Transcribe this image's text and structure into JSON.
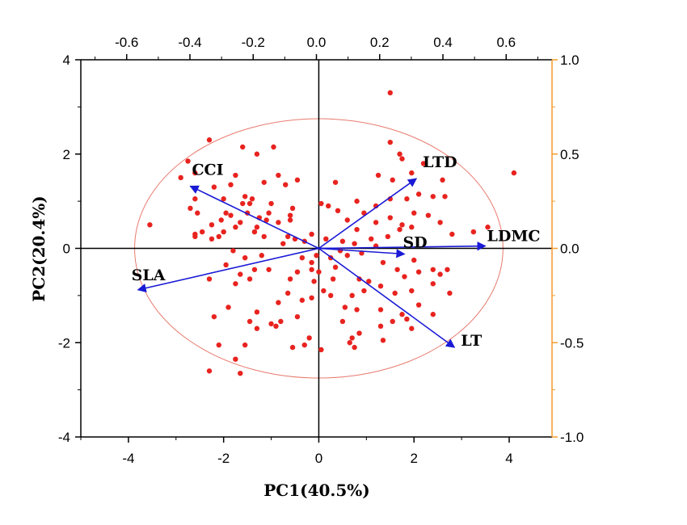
{
  "chart_data": {
    "type": "scatter",
    "subtype": "pca-biplot",
    "title": "",
    "xlabel": "PC1(40.5%)",
    "ylabel": "PC2(20.4%)",
    "xlim": [
      -5,
      4.9
    ],
    "ylim": [
      -4,
      4
    ],
    "x_ticks": [
      "-4",
      "-2",
      "0",
      "2",
      "4"
    ],
    "y_ticks": [
      "-4",
      "-2",
      "0",
      "2",
      "4"
    ],
    "top_axis": {
      "lim": [
        -0.745,
        0.745
      ],
      "ticks": [
        "-0.6",
        "-0.4",
        "-0.2",
        "0.0",
        "0.2",
        "0.4",
        "0.6"
      ],
      "color": "#000000"
    },
    "right_axis": {
      "lim": [
        -1.0,
        1.0
      ],
      "ticks": [
        "-1.0",
        "-0.5",
        "0.0",
        "0.5",
        "1.0"
      ],
      "color": "#f39c2c"
    },
    "grid": false,
    "colors": {
      "points": "#e8231f",
      "vectors": "#1919d6",
      "ellipse": "#e87a6e",
      "frame": "#000000",
      "right_axis": "#f39c2c"
    },
    "ellipse": {
      "center": [
        0,
        0
      ],
      "rx": 3.87,
      "ry": 2.75
    },
    "loadings": [
      {
        "name": "LTD",
        "x": 2.05,
        "y": 1.48
      },
      {
        "name": "CCI",
        "x": -2.7,
        "y": 1.32
      },
      {
        "name": "SLA",
        "x": -3.8,
        "y": -0.88
      },
      {
        "name": "LDMC",
        "x": 3.5,
        "y": 0.05
      },
      {
        "name": "SD",
        "x": 1.8,
        "y": -0.12
      },
      {
        "name": "LT",
        "x": 2.85,
        "y": -2.1
      }
    ],
    "points": [
      [
        1.5,
        3.3
      ],
      [
        1.5,
        2.25
      ],
      [
        1.7,
        2.0
      ],
      [
        1.75,
        1.9
      ],
      [
        1.25,
        1.55
      ],
      [
        1.55,
        1.45
      ],
      [
        2.2,
        1.8
      ],
      [
        1.95,
        1.6
      ],
      [
        2.6,
        1.45
      ],
      [
        2.65,
        1.1
      ],
      [
        1.5,
        1.05
      ],
      [
        2.1,
        1.15
      ],
      [
        1.85,
        1.05
      ],
      [
        2.4,
        1.1
      ],
      [
        2.0,
        0.75
      ],
      [
        1.5,
        0.65
      ],
      [
        1.75,
        0.5
      ],
      [
        2.3,
        0.7
      ],
      [
        2.55,
        0.55
      ],
      [
        1.45,
        0.25
      ],
      [
        1.7,
        0.4
      ],
      [
        1.95,
        0.45
      ],
      [
        2.8,
        0.3
      ],
      [
        3.25,
        0.35
      ],
      [
        3.55,
        0.45
      ],
      [
        4.1,
        1.6
      ],
      [
        1.2,
        0.9
      ],
      [
        0.8,
        1.0
      ],
      [
        0.95,
        0.75
      ],
      [
        1.2,
        0.55
      ],
      [
        0.8,
        0.4
      ],
      [
        0.6,
        0.6
      ],
      [
        0.4,
        0.8
      ],
      [
        0.2,
        0.9
      ],
      [
        0.35,
        1.4
      ],
      [
        0.05,
        0.95
      ],
      [
        0.15,
        0.2
      ],
      [
        0.5,
        0.15
      ],
      [
        0.75,
        0.1
      ],
      [
        1.1,
        0.2
      ],
      [
        0.25,
        -0.2
      ],
      [
        0.6,
        -0.15
      ],
      [
        0.9,
        -0.1
      ],
      [
        1.2,
        0.05
      ],
      [
        1.35,
        -0.3
      ],
      [
        1.65,
        -0.45
      ],
      [
        1.8,
        -0.6
      ],
      [
        2.1,
        -0.5
      ],
      [
        2.0,
        -0.25
      ],
      [
        2.4,
        -0.45
      ],
      [
        2.7,
        -0.45
      ],
      [
        2.4,
        -0.75
      ],
      [
        2.55,
        -0.55
      ],
      [
        2.75,
        -0.95
      ],
      [
        1.95,
        -0.9
      ],
      [
        1.6,
        -0.95
      ],
      [
        1.3,
        -0.8
      ],
      [
        1.05,
        -0.7
      ],
      [
        0.85,
        -0.65
      ],
      [
        0.95,
        -0.9
      ],
      [
        0.7,
        -1.0
      ],
      [
        0.55,
        -1.25
      ],
      [
        0.8,
        -1.3
      ],
      [
        1.3,
        -1.3
      ],
      [
        1.55,
        -1.55
      ],
      [
        1.85,
        -1.5
      ],
      [
        2.4,
        -1.4
      ],
      [
        2.1,
        -1.2
      ],
      [
        1.75,
        -1.4
      ],
      [
        1.3,
        -1.65
      ],
      [
        1.95,
        -1.7
      ],
      [
        1.35,
        -1.95
      ],
      [
        0.5,
        -1.55
      ],
      [
        0.85,
        -1.8
      ],
      [
        0.7,
        -1.9
      ],
      [
        0.65,
        -2.0
      ],
      [
        0.75,
        -2.1
      ],
      [
        0.05,
        -2.15
      ],
      [
        0.35,
        -0.4
      ],
      [
        0.3,
        -0.65
      ],
      [
        0.25,
        -1.0
      ],
      [
        0.1,
        -0.9
      ],
      [
        0.0,
        -0.5
      ],
      [
        -0.15,
        -0.45
      ],
      [
        -0.1,
        -0.7
      ],
      [
        -0.15,
        -1.05
      ],
      [
        -0.35,
        -1.1
      ],
      [
        -0.45,
        -1.45
      ],
      [
        -0.2,
        -1.9
      ],
      [
        -0.3,
        -2.05
      ],
      [
        -0.55,
        -2.1
      ],
      [
        -0.35,
        -0.2
      ],
      [
        -0.45,
        -0.5
      ],
      [
        -0.6,
        -0.65
      ],
      [
        -0.65,
        -0.95
      ],
      [
        -0.85,
        -1.15
      ],
      [
        -0.8,
        -1.55
      ],
      [
        -0.9,
        -1.65
      ],
      [
        -1.0,
        -1.6
      ],
      [
        -1.3,
        -1.7
      ],
      [
        -1.45,
        -1.55
      ],
      [
        -1.55,
        -2.05
      ],
      [
        -1.75,
        -2.35
      ],
      [
        -1.65,
        -2.65
      ],
      [
        -2.1,
        -2.05
      ],
      [
        -2.3,
        -2.6
      ],
      [
        -2.2,
        -1.45
      ],
      [
        -1.9,
        -1.25
      ],
      [
        -1.3,
        -1.35
      ],
      [
        -1.05,
        -0.45
      ],
      [
        -1.35,
        -0.45
      ],
      [
        -1.45,
        -0.65
      ],
      [
        -1.75,
        -0.75
      ],
      [
        -1.65,
        -0.55
      ],
      [
        -2.3,
        -0.65
      ],
      [
        -1.95,
        -0.35
      ],
      [
        -1.55,
        -0.2
      ],
      [
        -1.8,
        -0.05
      ],
      [
        -1.2,
        -0.15
      ],
      [
        -0.75,
        0.1
      ],
      [
        -0.5,
        0.2
      ],
      [
        -0.3,
        0.15
      ],
      [
        -0.15,
        0.3
      ],
      [
        -0.65,
        0.25
      ],
      [
        -0.85,
        0.55
      ],
      [
        -0.6,
        0.6
      ],
      [
        -0.6,
        0.7
      ],
      [
        -0.55,
        0.85
      ],
      [
        -1.15,
        0.25
      ],
      [
        -1.35,
        0.35
      ],
      [
        -1.1,
        0.6
      ],
      [
        -1.25,
        0.65
      ],
      [
        -1.05,
        0.75
      ],
      [
        -1.3,
        0.45
      ],
      [
        -1.0,
        0.95
      ],
      [
        -0.45,
        1.45
      ],
      [
        -1.5,
        0.75
      ],
      [
        -1.45,
        0.95
      ],
      [
        -1.55,
        1.1
      ],
      [
        -1.65,
        0.55
      ],
      [
        -1.75,
        0.45
      ],
      [
        -1.85,
        0.7
      ],
      [
        -1.95,
        0.75
      ],
      [
        -2.05,
        0.6
      ],
      [
        -2.0,
        0.35
      ],
      [
        -2.1,
        0.25
      ],
      [
        -2.25,
        0.5
      ],
      [
        -2.25,
        0.2
      ],
      [
        -2.45,
        0.35
      ],
      [
        -2.6,
        0.25
      ],
      [
        -2.55,
        0.75
      ],
      [
        -2.7,
        0.85
      ],
      [
        -2.6,
        1.05
      ],
      [
        -2.6,
        0.3
      ],
      [
        -2.2,
        1.3
      ],
      [
        -2.0,
        1.05
      ],
      [
        -1.85,
        1.35
      ],
      [
        -1.75,
        1.55
      ],
      [
        -1.6,
        0.95
      ],
      [
        -2.75,
        1.85
      ],
      [
        -2.9,
        1.5
      ],
      [
        -2.3,
        2.3
      ],
      [
        -1.6,
        2.15
      ],
      [
        -1.3,
        2.0
      ],
      [
        -0.95,
        2.15
      ],
      [
        -0.85,
        1.55
      ],
      [
        -0.7,
        1.35
      ],
      [
        -1.15,
        1.4
      ],
      [
        -1.4,
        1.05
      ],
      [
        -3.55,
        0.5
      ],
      [
        -2.6,
        1.6
      ],
      [
        -0.15,
        -0.3
      ],
      [
        0.45,
        -0.05
      ],
      [
        -0.05,
        -0.15
      ]
    ]
  }
}
